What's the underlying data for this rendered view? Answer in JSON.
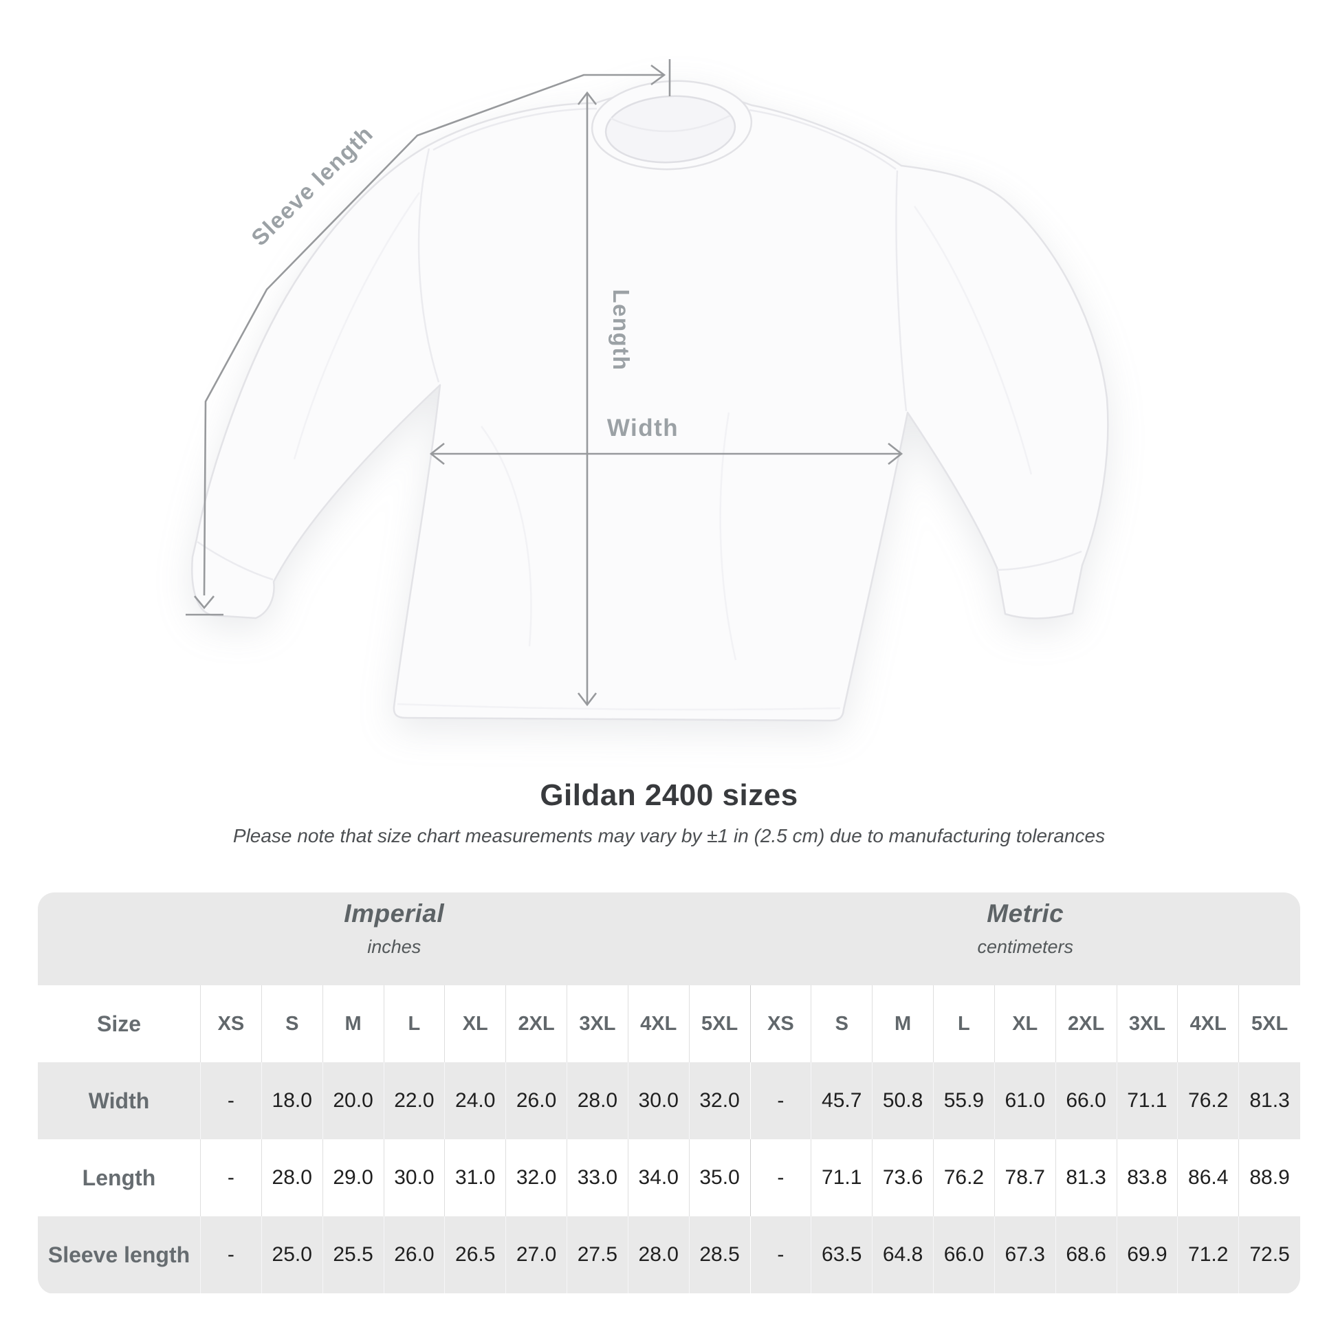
{
  "title": "Gildan 2400 sizes",
  "subtitle": "Please note that size chart measurements may vary by ±1 in (2.5 cm) due to manufacturing tolerances",
  "diagram": {
    "labels": {
      "sleeve_length": "Sleeve length",
      "length": "Length",
      "width": "Width"
    }
  },
  "table": {
    "system_headers": [
      {
        "name": "Imperial",
        "unit": "inches",
        "span": 9
      },
      {
        "name": "Metric",
        "unit": "centimeters",
        "span": 9
      }
    ],
    "size_header": {
      "label": "Size",
      "sizes": [
        "XS",
        "S",
        "M",
        "L",
        "XL",
        "2XL",
        "3XL",
        "4XL",
        "5XL",
        "XS",
        "S",
        "M",
        "L",
        "XL",
        "2XL",
        "3XL",
        "4XL",
        "5XL"
      ]
    },
    "rows": [
      {
        "label": "Width",
        "values": [
          "-",
          "18.0",
          "20.0",
          "22.0",
          "24.0",
          "26.0",
          "28.0",
          "30.0",
          "32.0",
          "-",
          "45.7",
          "50.8",
          "55.9",
          "61.0",
          "66.0",
          "71.1",
          "76.2",
          "81.3"
        ]
      },
      {
        "label": "Length",
        "values": [
          "-",
          "28.0",
          "29.0",
          "30.0",
          "31.0",
          "32.0",
          "33.0",
          "34.0",
          "35.0",
          "-",
          "71.1",
          "73.6",
          "76.2",
          "78.7",
          "81.3",
          "83.8",
          "86.4",
          "88.9"
        ]
      },
      {
        "label": "Sleeve length",
        "values": [
          "-",
          "25.0",
          "25.5",
          "26.0",
          "26.5",
          "27.0",
          "27.5",
          "28.0",
          "28.5",
          "-",
          "63.5",
          "64.8",
          "66.0",
          "67.3",
          "68.6",
          "69.9",
          "71.2",
          "72.5"
        ]
      }
    ]
  },
  "colors": {
    "table_band": "#e9e9e9",
    "measure_line": "#97999c",
    "measure_label": "#9ba1a5",
    "title_text": "#383a3d",
    "data_text": "#1f1f1f"
  }
}
